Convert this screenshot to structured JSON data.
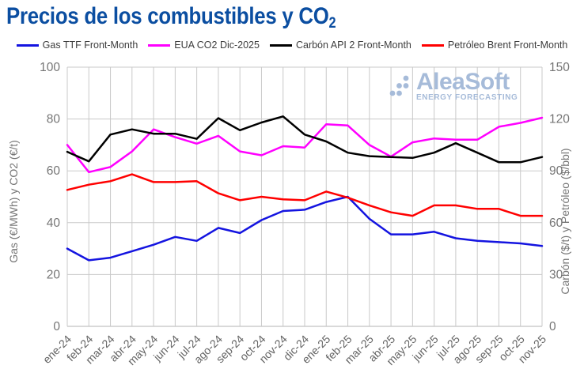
{
  "title": {
    "main": "Precios de los combustibles y CO",
    "sub": "2"
  },
  "colors": {
    "title": "#0B4EA1",
    "watermark": "#A6BBD9",
    "gridline": "#C9C9C9",
    "axis_line": "#B3B3B3",
    "tick_text": "#757575",
    "x_tick_text": "#636363",
    "legend_text": "#3D3D3D"
  },
  "watermark": {
    "brand": "AleaSoft",
    "tagline": "ENERGY FORECASTING"
  },
  "chart_data": {
    "type": "line",
    "title": "Precios de los combustibles y CO2",
    "x": [
      "ene-24",
      "feb-24",
      "mar-24",
      "abr-24",
      "may-24",
      "jun-24",
      "jul-24",
      "ago-24",
      "sep-24",
      "oct-24",
      "nov-24",
      "dic-24",
      "ene-25",
      "feb-25",
      "mar-25",
      "abr-25",
      "may-25",
      "jun-25",
      "jul-25",
      "ago-25",
      "sep-25",
      "oct-25",
      "nov-25"
    ],
    "series": [
      {
        "id": "gas-ttf",
        "name": "Gas TTF Front-Month",
        "axis": "left",
        "unit": "€/MWh",
        "color": "#1414E0",
        "values": [
          30,
          25.5,
          26.5,
          29,
          31.5,
          34.5,
          33,
          38,
          36,
          41,
          44.5,
          45,
          48,
          50,
          41.5,
          35.5,
          35.5,
          36.5,
          34,
          33,
          32.5,
          32,
          31
        ]
      },
      {
        "id": "eua-co2",
        "name": "EUA CO2 Dic-2025",
        "axis": "left",
        "unit": "€/t",
        "color": "#FF00FF",
        "values": [
          70,
          59.5,
          61.5,
          67.5,
          76,
          73,
          70.5,
          73.5,
          67.5,
          66,
          69.5,
          69,
          78,
          77.5,
          70,
          65.5,
          71,
          72.5,
          72,
          72,
          77,
          78.5,
          80.5
        ]
      },
      {
        "id": "carbon-api2",
        "name": "Carbón API 2 Front-Month",
        "axis": "right",
        "unit": "$/t",
        "color": "#000000",
        "values": [
          101,
          95.5,
          111,
          114,
          111.5,
          111.5,
          108.5,
          120.5,
          113.5,
          118,
          121.5,
          111,
          107,
          100.5,
          98.5,
          98,
          97.5,
          100.5,
          106,
          100.5,
          95,
          95,
          98
        ]
      },
      {
        "id": "petroleo-brent",
        "name": "Petróleo Brent Front-Month",
        "axis": "right",
        "unit": "$/bbl",
        "color": "#FF0000",
        "values": [
          79,
          82,
          84,
          88,
          83.5,
          83.5,
          84,
          77,
          73,
          75,
          73.5,
          73,
          78,
          74.5,
          70,
          66,
          64,
          70,
          70,
          68,
          68,
          64,
          64
        ]
      }
    ],
    "left_axis": {
      "label": "Gas (€/MWh) y CO2 (€/t)",
      "min": 0,
      "max": 100,
      "ticks": [
        0,
        20,
        40,
        60,
        80,
        100
      ]
    },
    "right_axis": {
      "label": "Carbón ($/t) y Petróleo ($/bbl)",
      "min": 0,
      "max": 150,
      "ticks": [
        0,
        30,
        60,
        90,
        120,
        150
      ]
    },
    "grid": true,
    "legend_position": "top"
  }
}
